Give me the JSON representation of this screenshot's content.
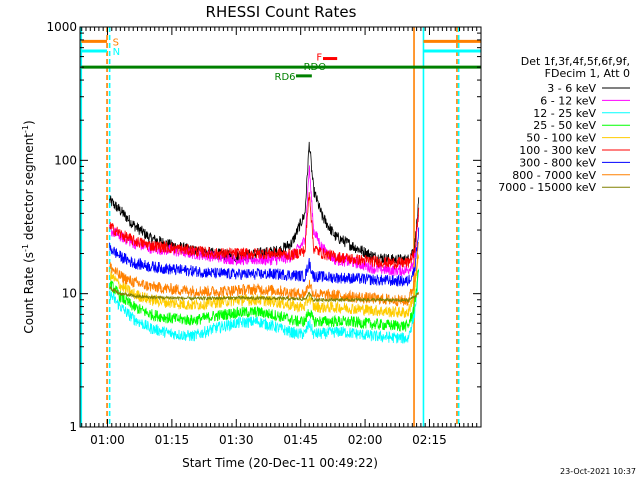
{
  "chart_data": {
    "type": "line",
    "title": "RHESSI Count Rates",
    "xlabel": "Start Time (20-Dec-11 00:49:22)",
    "ylabel": "Count Rate (s",
    "ylabel_sup": "-1",
    "ylabel_tail": " detector segment",
    "ylabel_close": ")",
    "yscale": "log",
    "ylim": [
      1,
      1000
    ],
    "xlim_minutes": [
      53.6,
      147.0
    ],
    "y_ticks": [
      {
        "v": 1,
        "label": "1"
      },
      {
        "v": 10,
        "label": "10"
      },
      {
        "v": 100,
        "label": "100"
      },
      {
        "v": 1000,
        "label": "1000"
      }
    ],
    "x_ticks": [
      {
        "v": 60,
        "label": "01:00"
      },
      {
        "v": 75,
        "label": "01:15"
      },
      {
        "v": 90,
        "label": "01:30"
      },
      {
        "v": 105,
        "label": "01:45"
      },
      {
        "v": 120,
        "label": "02:00"
      },
      {
        "v": 135,
        "label": "02:15"
      }
    ],
    "legend_header": [
      "Det 1f,3f,4f,5f,6f,9f,",
      "FDecim 1, Att 0"
    ],
    "legend_position": "right",
    "timestamp": "23-Oct-2021 10:37",
    "flag_labels": {
      "s": "S",
      "n": "N",
      "f": "F",
      "rdo": "RDO",
      "rd6": "RD6"
    },
    "series": [
      {
        "name": "3 - 6 keV",
        "color": "#000000",
        "key": [
          [
            60.5,
            50
          ],
          [
            63,
            42
          ],
          [
            66,
            33
          ],
          [
            70,
            26
          ],
          [
            75,
            23
          ],
          [
            80,
            21
          ],
          [
            85,
            20
          ],
          [
            90,
            19
          ],
          [
            95,
            20
          ],
          [
            100,
            21
          ],
          [
            103,
            24
          ],
          [
            106,
            40
          ],
          [
            107,
            135
          ],
          [
            108,
            60
          ],
          [
            110,
            38
          ],
          [
            113,
            27
          ],
          [
            118,
            22
          ],
          [
            122,
            19
          ],
          [
            126,
            18
          ],
          [
            130,
            18
          ],
          [
            131.5,
            22
          ],
          [
            132.5,
            48
          ]
        ]
      },
      {
        "name": "6 - 12 keV",
        "color": "#ff00ff",
        "key": [
          [
            60.5,
            30
          ],
          [
            63,
            27
          ],
          [
            66,
            24
          ],
          [
            70,
            22
          ],
          [
            75,
            21
          ],
          [
            80,
            20
          ],
          [
            85,
            19
          ],
          [
            90,
            18
          ],
          [
            95,
            18
          ],
          [
            100,
            18
          ],
          [
            103,
            19
          ],
          [
            106,
            25
          ],
          [
            107,
            90
          ],
          [
            108,
            30
          ],
          [
            110,
            22
          ],
          [
            113,
            18
          ],
          [
            118,
            17
          ],
          [
            122,
            15.5
          ],
          [
            126,
            15
          ],
          [
            130,
            15
          ],
          [
            131.5,
            18
          ],
          [
            132.5,
            40
          ]
        ]
      },
      {
        "name": "12 - 25 keV",
        "color": "#00ffff",
        "key": [
          [
            60.5,
            10
          ],
          [
            63,
            8
          ],
          [
            66,
            6.5
          ],
          [
            70,
            5.5
          ],
          [
            75,
            5
          ],
          [
            80,
            4.8
          ],
          [
            85,
            5.5
          ],
          [
            90,
            6
          ],
          [
            95,
            6.2
          ],
          [
            100,
            5.5
          ],
          [
            104,
            5
          ],
          [
            106,
            5
          ],
          [
            107,
            6
          ],
          [
            108,
            5
          ],
          [
            110,
            5
          ],
          [
            114,
            5.2
          ],
          [
            118,
            5
          ],
          [
            122,
            4.8
          ],
          [
            126,
            4.7
          ],
          [
            130,
            4.6
          ],
          [
            131.5,
            7
          ],
          [
            132.5,
            14
          ]
        ]
      },
      {
        "name": "25 - 50 keV",
        "color": "#00ff00",
        "key": [
          [
            60.5,
            12
          ],
          [
            63,
            9.5
          ],
          [
            66,
            8
          ],
          [
            70,
            7
          ],
          [
            75,
            6.5
          ],
          [
            80,
            6.3
          ],
          [
            85,
            6.8
          ],
          [
            90,
            7.2
          ],
          [
            95,
            7.3
          ],
          [
            100,
            6.8
          ],
          [
            104,
            6.2
          ],
          [
            106,
            6.2
          ],
          [
            107,
            7.5
          ],
          [
            108,
            6.2
          ],
          [
            110,
            6.2
          ],
          [
            114,
            6.2
          ],
          [
            118,
            6.1
          ],
          [
            122,
            5.9
          ],
          [
            126,
            5.8
          ],
          [
            130,
            5.7
          ],
          [
            131.5,
            8
          ],
          [
            132.5,
            16
          ]
        ]
      },
      {
        "name": "50 - 100 keV",
        "color": "#ffcc00",
        "key": [
          [
            60.5,
            14
          ],
          [
            63,
            11.5
          ],
          [
            66,
            10
          ],
          [
            70,
            9
          ],
          [
            75,
            8.5
          ],
          [
            80,
            8.2
          ],
          [
            85,
            8.6
          ],
          [
            90,
            8.9
          ],
          [
            95,
            9
          ],
          [
            100,
            8.6
          ],
          [
            104,
            8
          ],
          [
            106,
            8
          ],
          [
            107,
            9.5
          ],
          [
            108,
            8
          ],
          [
            110,
            7.9
          ],
          [
            114,
            7.9
          ],
          [
            118,
            7.7
          ],
          [
            122,
            7.5
          ],
          [
            126,
            7.3
          ],
          [
            130,
            7.2
          ],
          [
            131.5,
            10
          ],
          [
            132.5,
            20
          ]
        ]
      },
      {
        "name": "100 - 300 keV",
        "color": "#ff0000",
        "key": [
          [
            60.5,
            32
          ],
          [
            63,
            28
          ],
          [
            66,
            25
          ],
          [
            70,
            23
          ],
          [
            75,
            22
          ],
          [
            80,
            21
          ],
          [
            85,
            20
          ],
          [
            90,
            20
          ],
          [
            95,
            20
          ],
          [
            100,
            20
          ],
          [
            103,
            19.5
          ],
          [
            106,
            21
          ],
          [
            107,
            60
          ],
          [
            108,
            22
          ],
          [
            110,
            20
          ],
          [
            113,
            19
          ],
          [
            118,
            18
          ],
          [
            122,
            17.5
          ],
          [
            126,
            17
          ],
          [
            130,
            17
          ],
          [
            131.5,
            20
          ],
          [
            132.5,
            42
          ]
        ]
      },
      {
        "name": "300 - 800 keV",
        "color": "#0000ff",
        "key": [
          [
            60.5,
            22
          ],
          [
            63,
            19
          ],
          [
            66,
            17
          ],
          [
            70,
            16
          ],
          [
            75,
            15.2
          ],
          [
            80,
            14.8
          ],
          [
            85,
            14.2
          ],
          [
            90,
            14
          ],
          [
            95,
            14
          ],
          [
            100,
            14
          ],
          [
            103,
            13.8
          ],
          [
            106,
            13.5
          ],
          [
            107,
            17
          ],
          [
            108,
            13.5
          ],
          [
            110,
            13.4
          ],
          [
            113,
            13.2
          ],
          [
            118,
            13
          ],
          [
            122,
            12.7
          ],
          [
            126,
            12.5
          ],
          [
            130,
            12.4
          ],
          [
            131.5,
            15
          ],
          [
            132.5,
            30
          ]
        ]
      },
      {
        "name": "800 - 7000 keV",
        "color": "#ff8000",
        "key": [
          [
            60.5,
            16
          ],
          [
            63,
            13.5
          ],
          [
            66,
            12.2
          ],
          [
            70,
            11.3
          ],
          [
            75,
            10.8
          ],
          [
            80,
            10.5
          ],
          [
            85,
            10.4
          ],
          [
            90,
            10.6
          ],
          [
            95,
            10.8
          ],
          [
            100,
            10.5
          ],
          [
            104,
            10
          ],
          [
            106,
            10
          ],
          [
            107,
            12
          ],
          [
            108,
            10
          ],
          [
            110,
            9.8
          ],
          [
            114,
            9.7
          ],
          [
            118,
            9.4
          ],
          [
            122,
            9.2
          ],
          [
            126,
            9
          ],
          [
            130,
            8.8
          ],
          [
            131.5,
            12
          ],
          [
            132.5,
            24
          ]
        ]
      },
      {
        "name": "7000 - 15000 keV",
        "color": "#808000",
        "key": [
          [
            60.5,
            11
          ],
          [
            63,
            10
          ],
          [
            66,
            9.6
          ],
          [
            70,
            9.4
          ],
          [
            75,
            9.3
          ],
          [
            80,
            9.2
          ],
          [
            90,
            9.3
          ],
          [
            100,
            9.2
          ],
          [
            106,
            9.1
          ],
          [
            107,
            10
          ],
          [
            108,
            9
          ],
          [
            120,
            9
          ],
          [
            130,
            8.9
          ],
          [
            132.5,
            10
          ]
        ]
      }
    ],
    "vlines": [
      {
        "t": 53.9,
        "color": "#00ffff",
        "style": "solid"
      },
      {
        "t": 59.9,
        "color": "#ff8000",
        "style": "dashed"
      },
      {
        "t": 60.5,
        "color": "#00ffff",
        "style": "dashed"
      },
      {
        "t": 131.4,
        "color": "#ff8000",
        "style": "solid"
      },
      {
        "t": 133.6,
        "color": "#00ffff",
        "style": "solid"
      },
      {
        "t": 141.4,
        "color": "#ff8000",
        "style": "dashed"
      },
      {
        "t": 141.8,
        "color": "#00ffff",
        "style": "dashed"
      }
    ],
    "bars": [
      {
        "name": "S",
        "color": "#ff8000",
        "t0": 53.9,
        "t1": 59.9,
        "y": 780
      },
      {
        "name": "N",
        "color": "#00ffff",
        "t0": 53.9,
        "t1": 59.9,
        "y": 660
      },
      {
        "name": "S",
        "color": "#ff8000",
        "t0": 133.6,
        "t1": 147.0,
        "y": 780
      },
      {
        "name": "N",
        "color": "#00ffff",
        "t0": 133.6,
        "t1": 147.0,
        "y": 660
      },
      {
        "name": "F",
        "color": "#ff0000",
        "t0": 110.2,
        "t1": 113.5,
        "y": 580
      },
      {
        "name": "RDO",
        "color": "#008000",
        "t0": 53.9,
        "t1": 147.0,
        "y": 500
      },
      {
        "name": "RD6",
        "color": "#008000",
        "t0": 103.9,
        "t1": 107.6,
        "y": 430
      }
    ]
  }
}
